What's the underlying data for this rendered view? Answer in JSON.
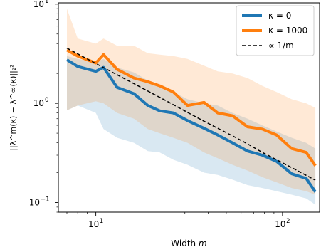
{
  "chart_data": {
    "type": "line",
    "title": "",
    "xlabel": "Width m",
    "ylabel": "||λ^m(κ) − λ^∞(κ)||₂²",
    "xscale": "log",
    "yscale": "log",
    "xlim": [
      6.3,
      158
    ],
    "ylim": [
      0.08,
      10.3
    ],
    "x_ticks": [
      {
        "value": 10,
        "base": "10",
        "exp": "1"
      },
      {
        "value": 100,
        "base": "10",
        "exp": "2"
      }
    ],
    "y_ticks": [
      {
        "value": 10,
        "base": "10",
        "exp": "1"
      },
      {
        "value": 1,
        "base": "10",
        "exp": "0"
      },
      {
        "value": 0.1,
        "base": "10",
        "exp": "−1"
      }
    ],
    "grid": false,
    "legend_position": "top-right",
    "x": [
      7,
      8,
      10,
      11,
      13,
      16,
      19,
      22,
      26,
      31,
      38,
      45,
      54,
      65,
      78,
      93,
      112,
      134,
      150
    ],
    "series": [
      {
        "name": "κ = 0",
        "color": "#1f77b4",
        "style": "solid",
        "values": [
          2.75,
          2.35,
          2.1,
          2.3,
          1.45,
          1.25,
          0.95,
          0.84,
          0.8,
          0.67,
          0.56,
          0.48,
          0.4,
          0.33,
          0.3,
          0.26,
          0.195,
          0.175,
          0.128
        ],
        "band_lower": [
          0.85,
          0.95,
          0.8,
          0.55,
          0.45,
          0.4,
          0.33,
          0.32,
          0.27,
          0.24,
          0.2,
          0.19,
          0.17,
          0.15,
          0.14,
          0.13,
          0.12,
          0.11,
          0.095
        ],
        "band_upper": [
          3.0,
          2.8,
          2.6,
          2.8,
          2.3,
          2.05,
          1.7,
          1.5,
          1.3,
          1.1,
          1.0,
          0.95,
          0.8,
          0.7,
          0.6,
          0.52,
          0.45,
          0.4,
          0.35
        ]
      },
      {
        "name": "κ = 1000",
        "color": "#ff7f0e",
        "style": "solid",
        "values": [
          3.45,
          3.0,
          2.55,
          3.1,
          2.2,
          1.8,
          1.65,
          1.5,
          1.3,
          0.95,
          1.02,
          0.8,
          0.75,
          0.58,
          0.55,
          0.48,
          0.35,
          0.32,
          0.235
        ],
        "band_lower": [
          0.85,
          0.95,
          1.05,
          1.0,
          0.8,
          0.7,
          0.55,
          0.5,
          0.45,
          0.4,
          0.32,
          0.28,
          0.24,
          0.21,
          0.18,
          0.16,
          0.14,
          0.13,
          0.12
        ],
        "band_upper": [
          9.0,
          4.5,
          4.0,
          4.5,
          3.8,
          3.8,
          3.2,
          3.1,
          3.0,
          2.8,
          2.4,
          2.1,
          2.0,
          1.8,
          1.5,
          1.3,
          1.1,
          1.0,
          0.9
        ]
      },
      {
        "name": "∝ 1/m",
        "color": "#000000",
        "style": "dashed",
        "values": [
          3.6,
          3.15,
          2.52,
          2.29,
          1.94,
          1.58,
          1.33,
          1.15,
          0.97,
          0.81,
          0.66,
          0.56,
          0.47,
          0.39,
          0.32,
          0.27,
          0.225,
          0.188,
          0.168
        ]
      }
    ]
  }
}
